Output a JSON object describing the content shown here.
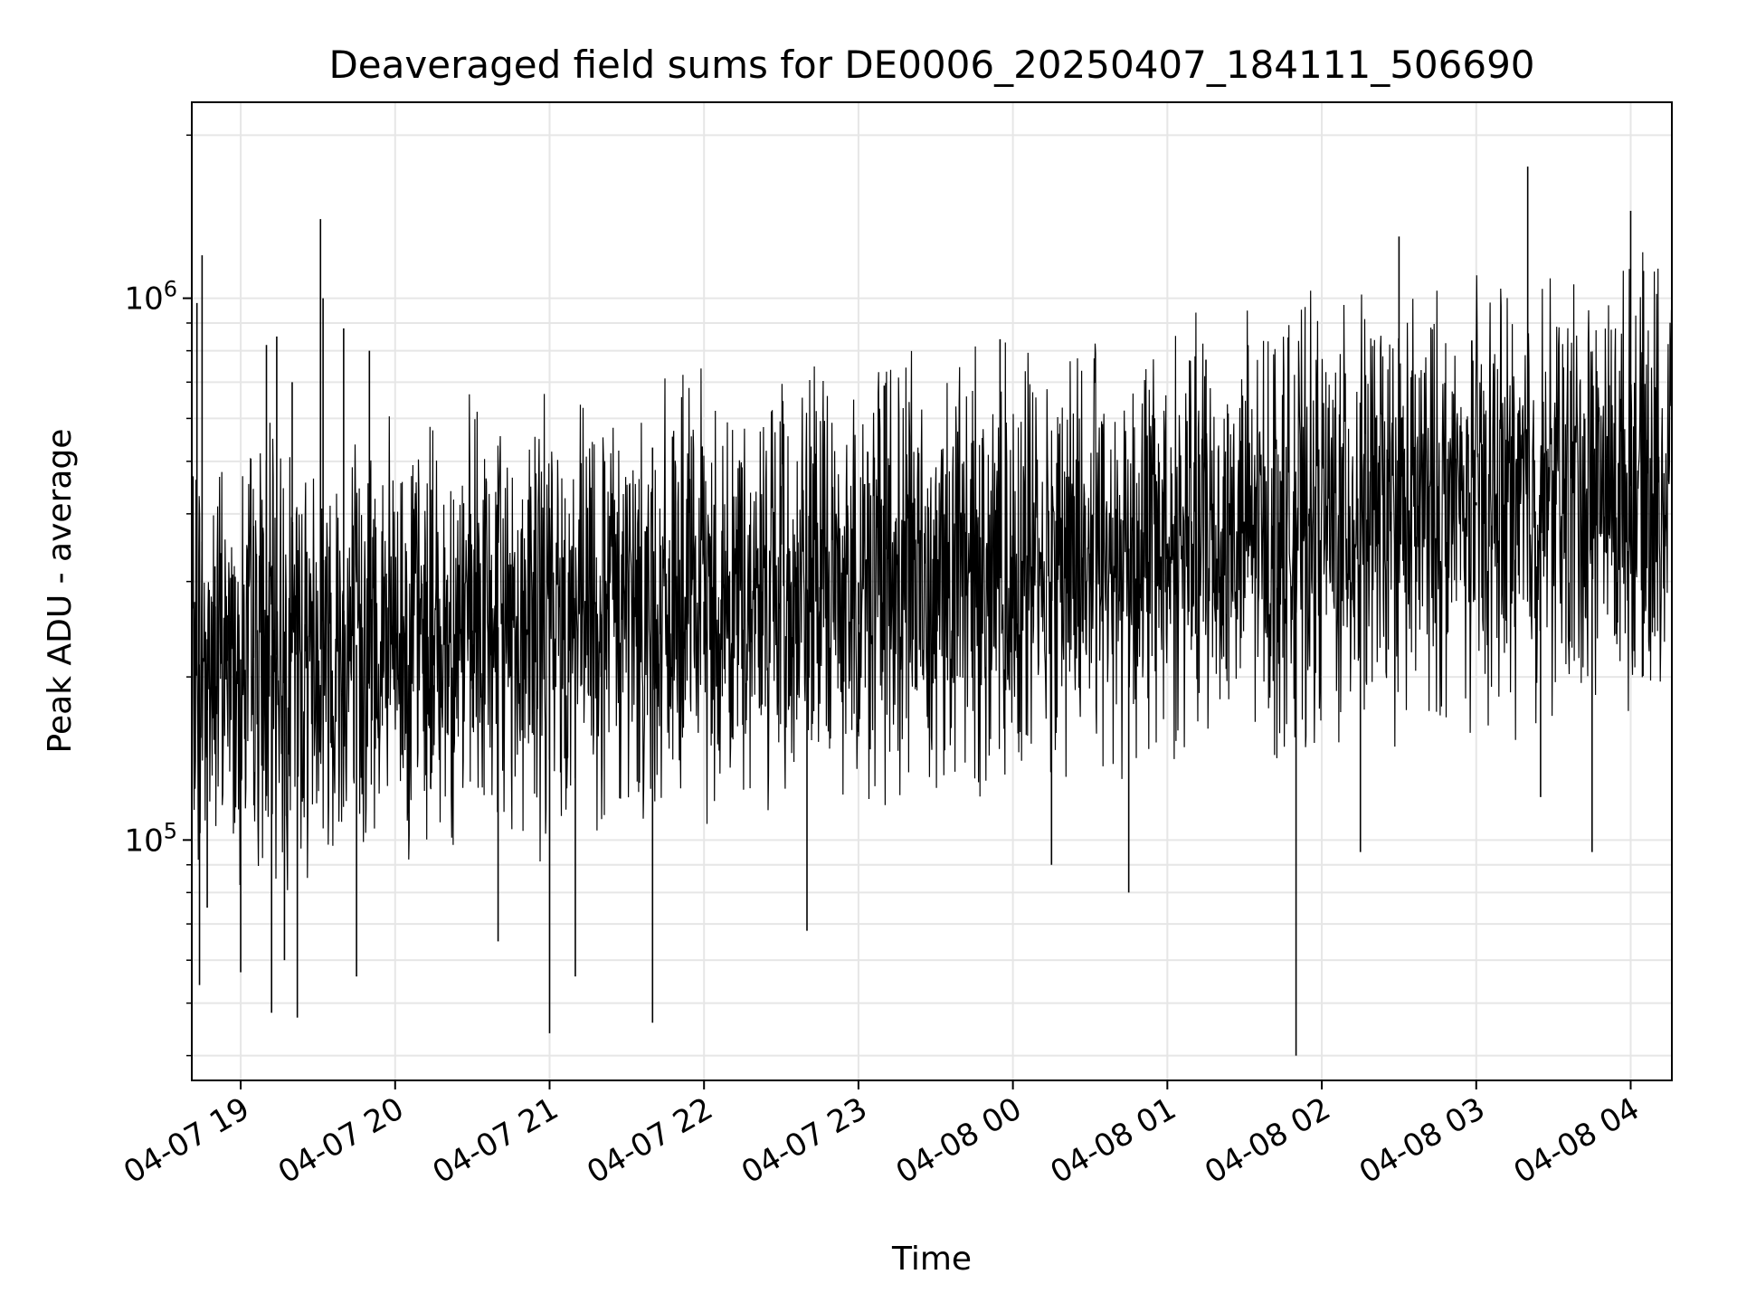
{
  "chart_data": {
    "type": "line",
    "title": "Deaveraged field sums for DE0006_20250407_184111_506690",
    "xlabel": "Time",
    "ylabel": "Peak ADU - average",
    "yscale": "log",
    "ylim": [
      36000,
      2300000
    ],
    "xlim": [
      "2025-04-07 18:41",
      "2025-04-08 04:16"
    ],
    "grid": true,
    "x_ticks": [
      {
        "value": "2025-04-07 19:00",
        "label": "04-07 19"
      },
      {
        "value": "2025-04-07 20:00",
        "label": "04-07 20"
      },
      {
        "value": "2025-04-07 21:00",
        "label": "04-07 21"
      },
      {
        "value": "2025-04-07 22:00",
        "label": "04-07 22"
      },
      {
        "value": "2025-04-07 23:00",
        "label": "04-07 23"
      },
      {
        "value": "2025-04-08 00:00",
        "label": "04-08 00"
      },
      {
        "value": "2025-04-08 01:00",
        "label": "04-08 01"
      },
      {
        "value": "2025-04-08 02:00",
        "label": "04-08 02"
      },
      {
        "value": "2025-04-08 03:00",
        "label": "04-08 03"
      },
      {
        "value": "2025-04-08 04:00",
        "label": "04-08 04"
      }
    ],
    "y_ticks": [
      {
        "value": 100000,
        "base": "10",
        "exp": "5"
      },
      {
        "value": 1000000,
        "base": "10",
        "exp": "6"
      }
    ],
    "series": [
      {
        "color": "#000000",
        "points": [
          [
            "2025-04-07 18:41",
            230000
          ],
          [
            "2025-04-07 18:43",
            980000
          ],
          [
            "2025-04-07 18:44",
            54000
          ],
          [
            "2025-04-07 18:45",
            1200000
          ],
          [
            "2025-04-07 18:47",
            75000
          ],
          [
            "2025-04-07 18:50",
            320000
          ],
          [
            "2025-04-07 18:55",
            260000
          ],
          [
            "2025-04-07 19:00",
            57000
          ],
          [
            "2025-04-07 19:05",
            380000
          ],
          [
            "2025-04-07 19:10",
            820000
          ],
          [
            "2025-04-07 19:12",
            48000
          ],
          [
            "2025-04-07 19:14",
            850000
          ],
          [
            "2025-04-07 19:17",
            60000
          ],
          [
            "2025-04-07 19:20",
            700000
          ],
          [
            "2025-04-07 19:22",
            47000
          ],
          [
            "2025-04-07 19:25",
            250000
          ],
          [
            "2025-04-07 19:30",
            190000
          ],
          [
            "2025-04-07 19:31",
            1400000
          ],
          [
            "2025-04-07 19:32",
            1000000
          ],
          [
            "2025-04-07 19:34",
            170000
          ],
          [
            "2025-04-07 19:40",
            880000
          ],
          [
            "2025-04-07 19:45",
            56000
          ],
          [
            "2025-04-07 19:50",
            800000
          ],
          [
            "2025-04-07 20:00",
            200000
          ],
          [
            "2025-04-07 20:15",
            210000
          ],
          [
            "2025-04-07 20:30",
            190000
          ],
          [
            "2025-04-07 20:40",
            65000
          ],
          [
            "2025-04-07 20:45",
            210000
          ],
          [
            "2025-04-07 21:00",
            44000
          ],
          [
            "2025-04-07 21:05",
            190000
          ],
          [
            "2025-04-07 21:10",
            56000
          ],
          [
            "2025-04-07 21:20",
            200000
          ],
          [
            "2025-04-07 21:40",
            530000
          ],
          [
            "2025-04-07 21:40",
            46000
          ],
          [
            "2025-04-07 22:00",
            220000
          ],
          [
            "2025-04-07 22:20",
            240000
          ],
          [
            "2025-04-07 22:40",
            68000
          ],
          [
            "2025-04-07 22:45",
            220000
          ],
          [
            "2025-04-07 23:00",
            250000
          ],
          [
            "2025-04-07 23:10",
            690000
          ],
          [
            "2025-04-07 23:30",
            290000
          ],
          [
            "2025-04-07 23:55",
            840000
          ],
          [
            "2025-04-08 00:00",
            320000
          ],
          [
            "2025-04-08 00:15",
            90000
          ],
          [
            "2025-04-08 00:30",
            300000
          ],
          [
            "2025-04-08 00:45",
            80000
          ],
          [
            "2025-04-08 01:00",
            330000
          ],
          [
            "2025-04-08 01:15",
            770000
          ],
          [
            "2025-04-08 01:30",
            360000
          ],
          [
            "2025-04-08 01:50",
            40000
          ],
          [
            "2025-04-08 01:55",
            400000
          ],
          [
            "2025-04-08 02:15",
            95000
          ],
          [
            "2025-04-08 02:30",
            1300000
          ],
          [
            "2025-04-08 02:45",
            450000
          ],
          [
            "2025-04-08 03:00",
            420000
          ],
          [
            "2025-04-08 03:20",
            1750000
          ],
          [
            "2025-04-08 03:25",
            120000
          ],
          [
            "2025-04-08 03:45",
            95000
          ],
          [
            "2025-04-08 04:00",
            1450000
          ],
          [
            "2025-04-08 04:10",
            450000
          ],
          [
            "2025-04-08 04:16",
            500000
          ]
        ]
      }
    ]
  }
}
